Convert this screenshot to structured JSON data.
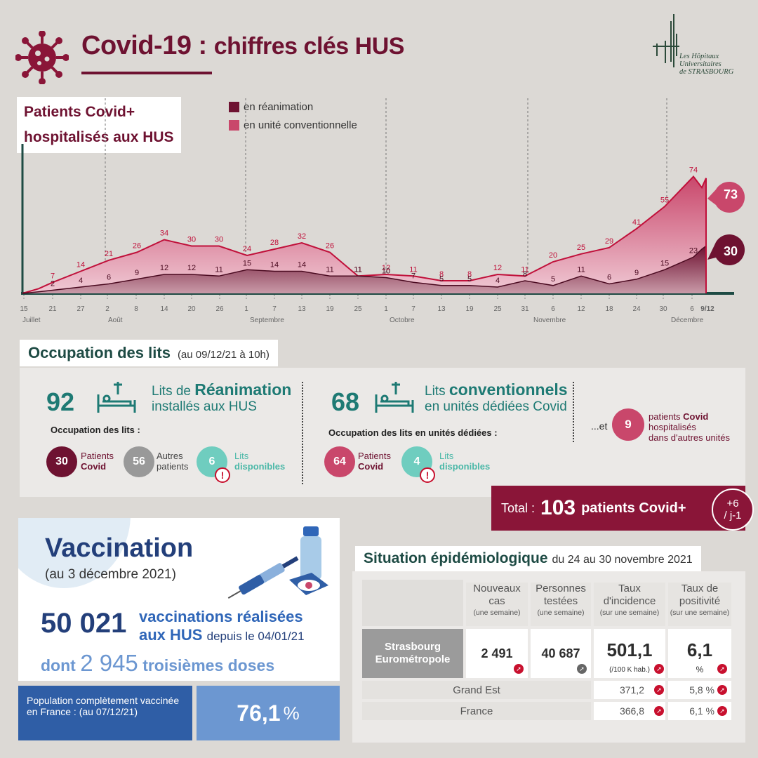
{
  "header": {
    "title_main": "Covid-19 :",
    "title_rest": "chiffres clés HUS",
    "logo_text": [
      "Les Hôpitaux",
      "Universitaires",
      "de STRASBOURG"
    ]
  },
  "colors": {
    "dark": "#6e1231",
    "pink": "#c9476b",
    "teal": "#1e7a74",
    "navy": "#233f7a",
    "blue": "#2f66b8",
    "light_blue": "#6c97d1"
  },
  "chart_data": {
    "type": "area",
    "title": "Patients Covid+ hospitalisés aux HUS",
    "legend": [
      {
        "name": "en réanimation",
        "color": "#6e1231"
      },
      {
        "name": "en unité conventionnelle",
        "color": "#c9476b"
      }
    ],
    "x_ticks": [
      "15",
      "21",
      "27",
      "2",
      "8",
      "14",
      "20",
      "26",
      "1",
      "7",
      "13",
      "19",
      "25",
      "1",
      "7",
      "13",
      "19",
      "25",
      "31",
      "6",
      "12",
      "18",
      "24",
      "30",
      "6",
      "9/12"
    ],
    "months": [
      "Juillet",
      "Août",
      "Septembre",
      "Octobre",
      "Novembre",
      "Décembre"
    ],
    "series": [
      {
        "name": "en unité conventionnelle",
        "labels": [
          7,
          14,
          21,
          26,
          34,
          30,
          30,
          24,
          28,
          32,
          26,
          11,
          12,
          11,
          8,
          8,
          12,
          11,
          20,
          25,
          29,
          41,
          55,
          74
        ],
        "last": 73
      },
      {
        "name": "en réanimation",
        "labels": [
          2,
          4,
          6,
          9,
          12,
          12,
          11,
          15,
          14,
          14,
          11,
          11,
          10,
          7,
          5,
          5,
          4,
          8,
          5,
          11,
          6,
          9,
          15,
          23
        ],
        "last": 30
      }
    ]
  },
  "occupation": {
    "title": "Occupation des lits",
    "subtitle": "(au 09/12/21 à 10h)",
    "rea": {
      "count": "92",
      "label_pre": "Lits de",
      "label_bold": "Réanimation",
      "label_post": "installés aux HUS",
      "occ_label": "Occupation des lits :",
      "items": [
        {
          "value": "30",
          "l1": "Patients",
          "l2": "Covid"
        },
        {
          "value": "56",
          "l1": "Autres",
          "l2": "patients"
        },
        {
          "value": "6",
          "l1": "Lits",
          "l2": "disponibles"
        }
      ]
    },
    "conv": {
      "count": "68",
      "label_pre": "Lits",
      "label_bold": "conventionnels",
      "label_post": "en unités dédiées Covid",
      "occ_label": "Occupation des lits en unités dédiées :",
      "items": [
        {
          "value": "64",
          "l1": "Patients",
          "l2": "Covid"
        },
        {
          "value": "4",
          "l1": "Lits",
          "l2": "disponibles"
        }
      ]
    },
    "other": {
      "prefix": "...et",
      "value": "9",
      "l1_pre": "patients",
      "l1_bold": "Covid",
      "l2": "hospitalisés",
      "l3": "dans d'autres unités"
    },
    "total": {
      "label": "Total :",
      "value": "103",
      "suffix": "patients Covid+",
      "delta1": "+6",
      "delta2": "/ j-1"
    }
  },
  "vaccination": {
    "title": "Vaccination",
    "date": "(au 3 décembre 2021)",
    "count": "50 021",
    "label1": "vaccinations réalisées",
    "label2": "aux HUS",
    "since": "depuis le 04/01/21",
    "third_pre": "dont",
    "third_num": "2 945",
    "third_post": "troisièmes doses",
    "pop_label": "Population complètement vaccinée en France : (au 07/12/21)",
    "pop_value": "76,1",
    "pop_unit": "%"
  },
  "epidemiology": {
    "title": "Situation épidémiologique",
    "subtitle": "du 24 au 30 novembre 2021",
    "headers": [
      {
        "l": "Nouveaux cas",
        "s": "(une semaine)"
      },
      {
        "l": "Personnes testées",
        "s": "(une semaine)"
      },
      {
        "l": "Taux d'incidence",
        "s": "(sur une semaine)"
      },
      {
        "l": "Taux de positivité",
        "s": "(sur une semaine)"
      }
    ],
    "rows": [
      {
        "name": "Strasbourg Eurométropole",
        "cases": "2 491",
        "tested": "40 687",
        "incidence": "501,1",
        "inc_unit": "(/100 K hab.)",
        "positivity": "6,1",
        "pos_unit": "%"
      },
      {
        "name": "Grand Est",
        "incidence": "371,2",
        "positivity": "5,8 %"
      },
      {
        "name": "France",
        "incidence": "366,8",
        "positivity": "6,1 %"
      }
    ]
  }
}
